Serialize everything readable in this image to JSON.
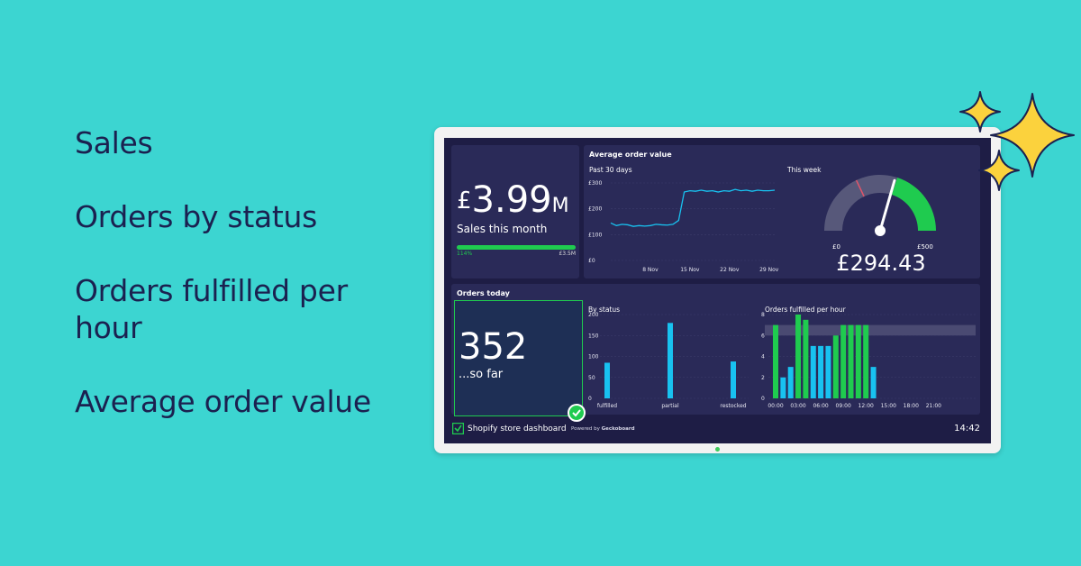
{
  "features": [
    "Sales",
    "Orders by status",
    "Orders fulfilled per hour",
    "Average order value"
  ],
  "dashboard": {
    "sales": {
      "currency": "£",
      "value": "3.99",
      "suffix": "M",
      "label": "Sales this month",
      "progress_percent_label": "114%",
      "target_label": "£3.5M",
      "progress_fraction": 1.0
    },
    "aov": {
      "title": "Average order value",
      "past_label": "Past 30 days",
      "week_label": "This week",
      "gauge_min": "£0",
      "gauge_max": "£500",
      "gauge_value": "£294.43",
      "gauge_numeric": 294.43
    },
    "orders_today": {
      "title": "Orders today",
      "count": "352",
      "caption": "...so far"
    },
    "by_status": {
      "title": "By status"
    },
    "fulfilled_per_hour": {
      "title": "Orders fulfilled per hour"
    },
    "footer": {
      "title": "Shopify store dashboard",
      "powered_prefix": "Powered by ",
      "powered_brand": "Geckoboard",
      "time": "14:42"
    },
    "colors": {
      "background": "#3cd5d1",
      "screen": "#1e1d45",
      "panel": "#2a2a58",
      "green": "#1fcb4f",
      "blue": "#18c2f0",
      "red": "#e0556a",
      "text_dark": "#1b2150"
    }
  },
  "chart_data": [
    {
      "type": "line",
      "title": "Past 30 days",
      "x_tick_labels": [
        "8 Nov",
        "15 Nov",
        "22 Nov",
        "29 Nov"
      ],
      "y_tick_labels": [
        "£0",
        "£100",
        "£200",
        "£300"
      ],
      "ylim": [
        0,
        300
      ],
      "x": [
        1,
        2,
        3,
        4,
        5,
        6,
        7,
        8,
        9,
        10,
        11,
        12,
        13,
        14,
        15,
        16,
        17,
        18,
        19,
        20,
        21,
        22,
        23,
        24,
        25,
        26,
        27,
        28,
        29,
        30
      ],
      "values": [
        145,
        135,
        140,
        138,
        132,
        135,
        133,
        135,
        140,
        138,
        137,
        140,
        155,
        265,
        270,
        268,
        272,
        268,
        270,
        265,
        270,
        268,
        275,
        270,
        272,
        268,
        272,
        270,
        270,
        272
      ]
    },
    {
      "type": "bar",
      "title": "By status",
      "categories": [
        "fulfilled",
        "partial",
        "restocked"
      ],
      "y_tick_labels": [
        "0",
        "50",
        "100",
        "150",
        "200"
      ],
      "ylim": [
        0,
        200
      ],
      "values": [
        85,
        180,
        88
      ]
    },
    {
      "type": "bar",
      "title": "Orders fulfilled per hour",
      "x_tick_labels": [
        "00:00",
        "03:00",
        "06:00",
        "09:00",
        "12:00",
        "15:00",
        "18:00",
        "21:00"
      ],
      "y_tick_labels": [
        "0",
        "2",
        "4",
        "6",
        "8"
      ],
      "ylim": [
        0,
        8
      ],
      "series": [
        {
          "color": "#1fcb4f",
          "values": [
            7,
            null,
            null,
            8,
            7.5,
            null,
            null,
            null,
            6,
            7,
            7,
            7,
            7,
            null,
            null,
            null
          ]
        },
        {
          "color": "#18c2f0",
          "values": [
            null,
            2,
            3,
            null,
            null,
            5,
            5,
            5,
            null,
            null,
            null,
            null,
            null,
            3,
            null,
            null
          ]
        }
      ],
      "highlight_band": [
        6,
        7
      ]
    }
  ]
}
